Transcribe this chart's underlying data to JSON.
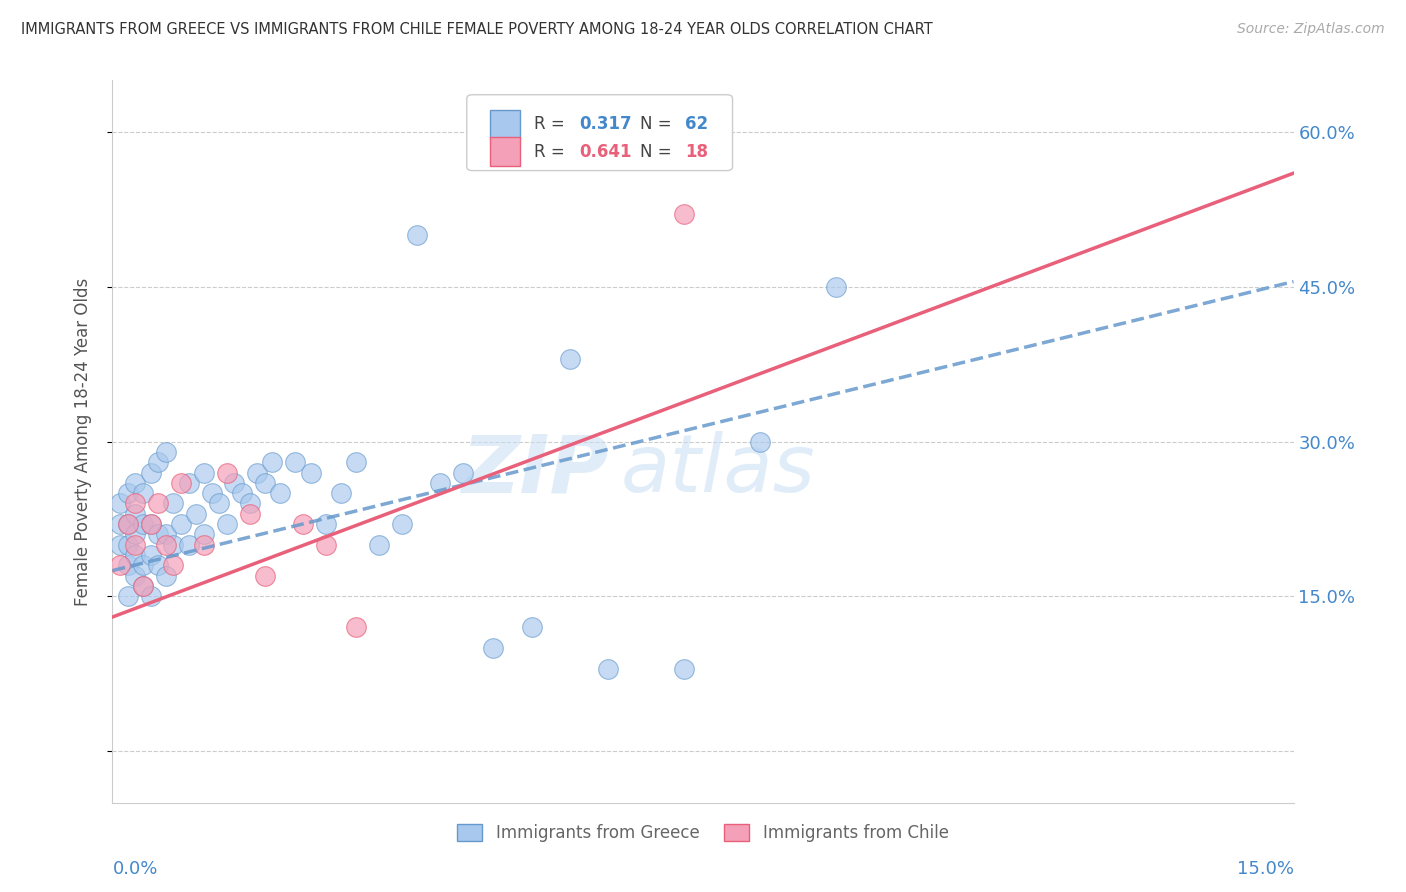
{
  "title": "IMMIGRANTS FROM GREECE VS IMMIGRANTS FROM CHILE FEMALE POVERTY AMONG 18-24 YEAR OLDS CORRELATION CHART",
  "source": "Source: ZipAtlas.com",
  "ylabel": "Female Poverty Among 18-24 Year Olds",
  "legend_greece": "Immigrants from Greece",
  "legend_chile": "Immigrants from Chile",
  "r_greece": "0.317",
  "n_greece": "62",
  "r_chile": "0.641",
  "n_chile": "18",
  "greece_color": "#a8c8ee",
  "chile_color": "#f4a0b8",
  "greece_line_color": "#6699cc",
  "chile_line_color": "#e8607a",
  "watermark_zip": "ZIP",
  "watermark_atlas": "atlas",
  "y_ticks": [
    0.0,
    0.15,
    0.3,
    0.45,
    0.6
  ],
  "y_tick_labels": [
    "",
    "15.0%",
    "30.0%",
    "45.0%",
    "60.0%"
  ],
  "xlim": [
    0.0,
    0.155
  ],
  "ylim": [
    -0.05,
    0.65
  ],
  "greece_x": [
    0.001,
    0.001,
    0.001,
    0.002,
    0.002,
    0.002,
    0.002,
    0.002,
    0.003,
    0.003,
    0.003,
    0.003,
    0.003,
    0.004,
    0.004,
    0.004,
    0.004,
    0.005,
    0.005,
    0.005,
    0.005,
    0.006,
    0.006,
    0.006,
    0.007,
    0.007,
    0.007,
    0.008,
    0.008,
    0.009,
    0.01,
    0.01,
    0.011,
    0.012,
    0.012,
    0.013,
    0.014,
    0.015,
    0.016,
    0.017,
    0.018,
    0.019,
    0.02,
    0.021,
    0.022,
    0.024,
    0.026,
    0.028,
    0.03,
    0.032,
    0.035,
    0.038,
    0.04,
    0.043,
    0.046,
    0.05,
    0.055,
    0.06,
    0.065,
    0.075,
    0.085,
    0.095
  ],
  "greece_y": [
    0.2,
    0.22,
    0.24,
    0.15,
    0.18,
    0.2,
    0.22,
    0.25,
    0.17,
    0.19,
    0.21,
    0.23,
    0.26,
    0.16,
    0.18,
    0.22,
    0.25,
    0.15,
    0.19,
    0.22,
    0.27,
    0.18,
    0.21,
    0.28,
    0.17,
    0.21,
    0.29,
    0.2,
    0.24,
    0.22,
    0.2,
    0.26,
    0.23,
    0.21,
    0.27,
    0.25,
    0.24,
    0.22,
    0.26,
    0.25,
    0.24,
    0.27,
    0.26,
    0.28,
    0.25,
    0.28,
    0.27,
    0.22,
    0.25,
    0.28,
    0.2,
    0.22,
    0.5,
    0.26,
    0.27,
    0.1,
    0.12,
    0.38,
    0.08,
    0.08,
    0.3,
    0.45
  ],
  "chile_x": [
    0.001,
    0.002,
    0.003,
    0.003,
    0.004,
    0.005,
    0.006,
    0.007,
    0.008,
    0.009,
    0.012,
    0.015,
    0.018,
    0.02,
    0.025,
    0.028,
    0.032,
    0.075
  ],
  "chile_y": [
    0.18,
    0.22,
    0.2,
    0.24,
    0.16,
    0.22,
    0.24,
    0.2,
    0.18,
    0.26,
    0.2,
    0.27,
    0.23,
    0.17,
    0.22,
    0.2,
    0.12,
    0.52
  ],
  "greece_line_x": [
    0.0,
    0.155
  ],
  "greece_line_y": [
    0.175,
    0.455
  ],
  "chile_line_x": [
    0.0,
    0.155
  ],
  "chile_line_y": [
    0.13,
    0.56
  ]
}
